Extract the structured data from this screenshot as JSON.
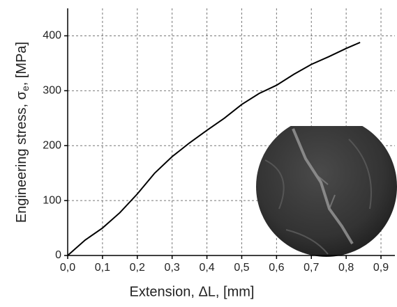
{
  "chart_data": {
    "type": "line",
    "xlabel": "Extension, ΔL, [mm]",
    "ylabel": [
      "Engineering stress, σ",
      "e",
      ", [MPa]"
    ],
    "x": [
      0,
      0.05,
      0.1,
      0.15,
      0.2,
      0.25,
      0.3,
      0.35,
      0.4,
      0.45,
      0.5,
      0.55,
      0.6,
      0.65,
      0.7,
      0.75,
      0.8,
      0.84
    ],
    "series": [
      {
        "color": "#000000",
        "values": [
          0,
          28,
          50,
          78,
          112,
          150,
          180,
          205,
          228,
          250,
          275,
          295,
          310,
          330,
          348,
          362,
          377,
          388
        ]
      }
    ],
    "xlim": [
      0,
      0.94
    ],
    "ylim": [
      0,
      450
    ],
    "xticks": [
      {
        "value": 0,
        "label": "0,0"
      },
      {
        "value": 0.1,
        "label": "0,1"
      },
      {
        "value": 0.2,
        "label": "0,2"
      },
      {
        "value": 0.3,
        "label": "0,3"
      },
      {
        "value": 0.4,
        "label": "0,4"
      },
      {
        "value": 0.5,
        "label": "0,5"
      },
      {
        "value": 0.6,
        "label": "0,6"
      },
      {
        "value": 0.7,
        "label": "0,7"
      },
      {
        "value": 0.8,
        "label": "0,8"
      },
      {
        "value": 0.9,
        "label": "0,9"
      }
    ],
    "yticks": [
      0,
      100,
      200,
      300,
      400
    ],
    "grid": true
  }
}
